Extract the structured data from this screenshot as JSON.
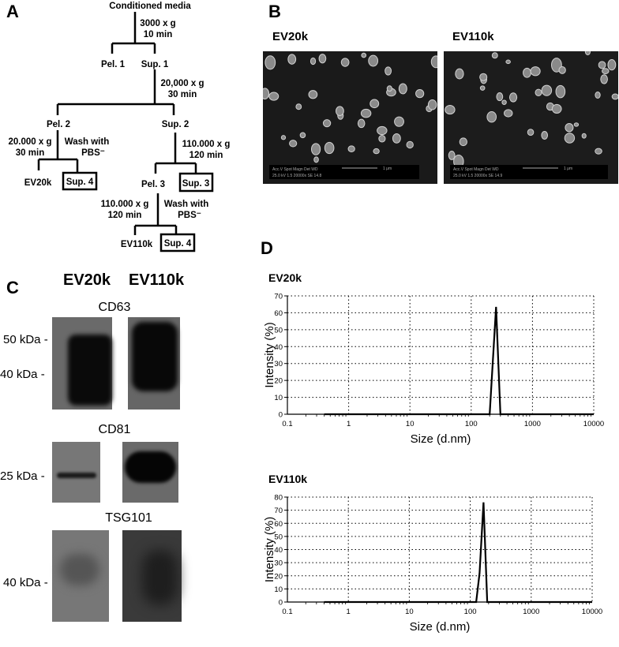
{
  "panels": {
    "a": "A",
    "b": "B",
    "c": "C",
    "d": "D"
  },
  "flowchart": {
    "start": "Conditioned media",
    "step1": {
      "speed": "3000 x g",
      "time": "10 min",
      "pellet": "Pel. 1",
      "supernatant": "Sup. 1"
    },
    "step2": {
      "speed": "20,000 x g",
      "time": "30 min",
      "pellet": "Pel. 2",
      "supernatant": "Sup. 2"
    },
    "pel2_branch": {
      "speed": "20.000 x g",
      "time": "30 min",
      "wash_line1": "Wash with",
      "wash_line2": "PBS⁻",
      "product": "EV20k",
      "supernatant": "Sup. 4"
    },
    "sup2_branch": {
      "speed": "110.000 x g",
      "time": "120 min",
      "pellet": "Pel. 3",
      "supernatant": "Sup. 3"
    },
    "pel3_branch": {
      "speed": "110.000 x g",
      "time": "120 min",
      "wash_line1": "Wash with",
      "wash_line2": "PBS⁻",
      "product": "EV110k",
      "supernatant": "Sup. 4"
    }
  },
  "sem": {
    "images": [
      {
        "label": "EV20k",
        "info_header": "Acc.V  Spot Magn   Det  WD",
        "info_values": "25.0 kV 1.5  20000x  SE  14.8",
        "scale": "1 μm"
      },
      {
        "label": "EV110k",
        "info_header": "Acc.V  Spot Magn   Det  WD",
        "info_values": "25.0 kV 1.5  20000x  SE  14.9",
        "scale": "1 μm"
      }
    ]
  },
  "western": {
    "columns": [
      "EV20k",
      "EV110k"
    ],
    "blots": [
      {
        "target": "CD63",
        "markers": [
          "50 kDa",
          "40 kDa"
        ]
      },
      {
        "target": "CD81",
        "markers": [
          "25 kDa"
        ]
      },
      {
        "target": "TSG101",
        "markers": [
          "40 kDa"
        ]
      }
    ]
  },
  "chart_data": [
    {
      "type": "line",
      "title": "EV20k",
      "xlabel": "Size (d.nm)",
      "ylabel": "Intensity (%)",
      "x_scale": "log",
      "xlim": [
        0.1,
        10000
      ],
      "ylim": [
        0,
        70
      ],
      "x_ticks": [
        "0.1",
        "1",
        "10",
        "100",
        "1000",
        "10000"
      ],
      "y_ticks": [
        "0",
        "10",
        "20",
        "30",
        "40",
        "50",
        "60",
        "70"
      ],
      "grid": true,
      "x": [
        0.4,
        200,
        255,
        300,
        10000
      ],
      "y": [
        0,
        0,
        63.5,
        0,
        0
      ]
    },
    {
      "type": "line",
      "title": "EV110k",
      "xlabel": "Size (d.nm)",
      "ylabel": "Intensity (%)",
      "x_scale": "log",
      "xlim": [
        0.1,
        10000
      ],
      "ylim": [
        0,
        80
      ],
      "x_ticks": [
        "0.1",
        "1",
        "10",
        "100",
        "1000",
        "10000"
      ],
      "y_ticks": [
        "0",
        "10",
        "20",
        "30",
        "40",
        "50",
        "60",
        "70",
        "80"
      ],
      "grid": true,
      "x": [
        0.4,
        125,
        142,
        165,
        190,
        10000
      ],
      "y": [
        0,
        0,
        22,
        76,
        0,
        0
      ]
    }
  ]
}
